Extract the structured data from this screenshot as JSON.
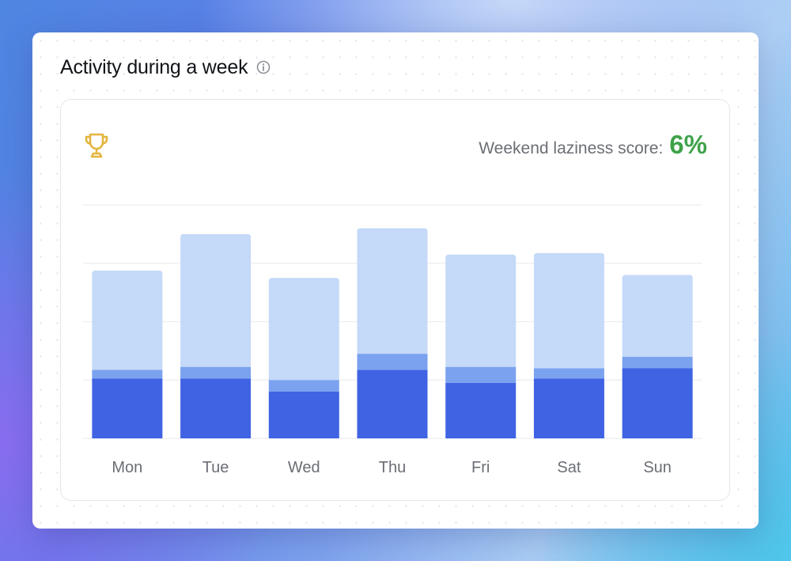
{
  "card": {
    "title": "Activity during a week",
    "info_icon": "info-circle-icon"
  },
  "header": {
    "trophy_icon": "trophy-icon",
    "score_label": "Weekend laziness score:",
    "score_value": "6%"
  },
  "colors": {
    "bar_light": "#c5d9f8",
    "bar_mid": "#7aa2ef",
    "bar_dark": "#3f63e3",
    "score_green": "#3fa24a",
    "trophy_gold": "#e3b53e",
    "gridline": "#ebedf0"
  },
  "chart_data": {
    "type": "bar",
    "stacked": true,
    "categories": [
      "Mon",
      "Tue",
      "Wed",
      "Thu",
      "Fri",
      "Sat",
      "Sun"
    ],
    "series": [
      {
        "values": [
          41,
          41,
          32,
          47,
          38,
          41,
          48
        ]
      },
      {
        "values": [
          6,
          8,
          8,
          11,
          11,
          7,
          8
        ]
      },
      {
        "values": [
          68,
          91,
          70,
          86,
          77,
          79,
          56
        ]
      }
    ],
    "ylim": [
      0,
      160
    ],
    "grid": true,
    "legend": "none"
  }
}
